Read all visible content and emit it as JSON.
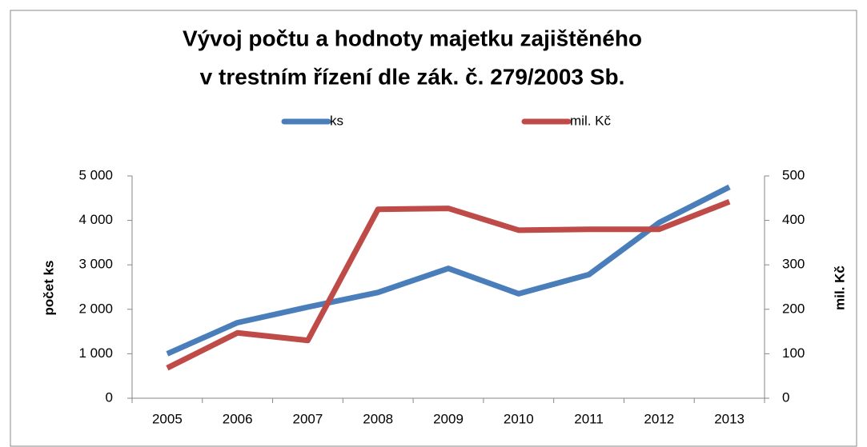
{
  "chart_data": {
    "type": "line",
    "title": [
      "Vývoj počtu a hodnoty majetku zajištěného",
      "v trestním řízení dle zák. č. 279/2003 Sb."
    ],
    "categories": [
      "2005",
      "2006",
      "2007",
      "2008",
      "2009",
      "2010",
      "2011",
      "2012",
      "2013"
    ],
    "series": [
      {
        "name": "ks",
        "color": "#4a7ebb",
        "values": [
          1000,
          1700,
          2050,
          2380,
          2920,
          2350,
          2780,
          3950,
          4750
        ]
      },
      {
        "name": "mil. Kč",
        "color": "#be4b48",
        "axis": "y2",
        "values": [
          68,
          147,
          130,
          425,
          427,
          378,
          380,
          380,
          442
        ]
      }
    ],
    "ylabel": "počet ks",
    "y2label": "mil. Kč",
    "ylim": [
      0,
      5000
    ],
    "yticks": [
      0,
      {
        "value": 1000,
        "label": "1 000"
      },
      {
        "value": 2000,
        "label": "2 000"
      },
      {
        "value": 3000,
        "label": "3 000"
      },
      {
        "value": 4000,
        "label": "4 000"
      },
      {
        "value": 5000,
        "label": "5 000"
      }
    ],
    "y2lim": [
      0,
      500
    ],
    "y2ticks": [
      0,
      100,
      200,
      300,
      400,
      500
    ],
    "legend": "top",
    "grid": false
  }
}
